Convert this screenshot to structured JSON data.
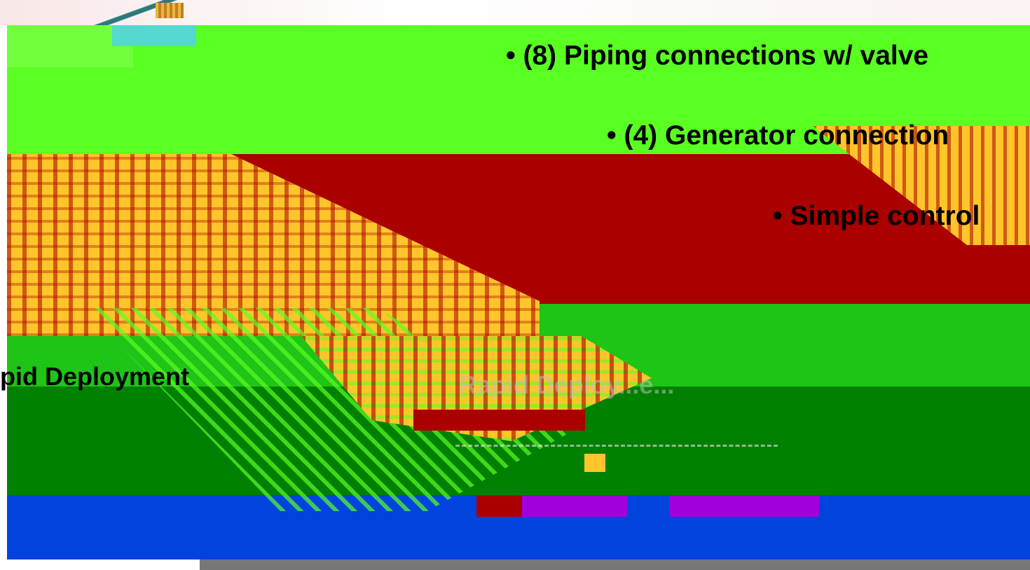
{
  "slide": {
    "bullets": [
      "• (8) Piping connections w/ valve",
      "• (4) Generator connection",
      "• Simple control"
    ],
    "left_label": "pid Deployment",
    "ghost_label": "Rapid Deploy...e..."
  },
  "colors": {
    "green_bright": "#5aff22",
    "red": "#aa0000",
    "green_mid": "#1ec416",
    "green_dark": "#008000",
    "blue": "#0044dd",
    "yellow": "#ffc52a",
    "purple": "#a100dd",
    "gray": "#777777"
  }
}
